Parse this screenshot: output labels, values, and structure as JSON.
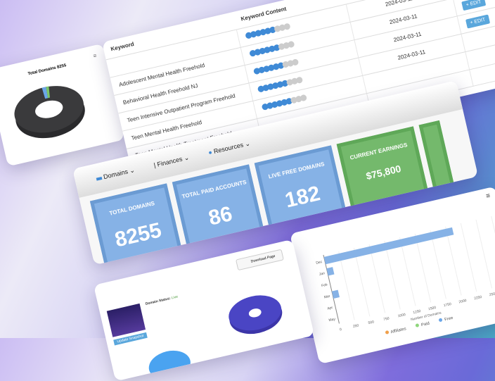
{
  "pie_card": {
    "title": "Total Domains 8255",
    "colors": {
      "main": "#3a3a3c",
      "slice1": "#6aa6e8",
      "slice2": "#7cc66a"
    }
  },
  "table": {
    "headers": [
      "Keyword",
      "Keyword Content",
      "",
      ""
    ],
    "rows": [
      {
        "keyword": "",
        "score": 6,
        "date": "2024-03-11",
        "action": "+ EDIT"
      },
      {
        "keyword": "Adolescent Mental Health Freehold",
        "score": 6,
        "date": "2024-03-11",
        "action": "+ EDIT"
      },
      {
        "keyword": "Behavioral Health Freehold NJ",
        "score": 6,
        "date": "2024-03-11",
        "action": "+ EDIT"
      },
      {
        "keyword": "Teen Intensive Outpatient Program Freehold",
        "score": 6,
        "date": "2024-03-11",
        "action": ""
      },
      {
        "keyword": "Teen Mental Health Freehold",
        "score": 6,
        "date": "",
        "action": ""
      },
      {
        "keyword": "Teen Mental Health Treatment Freehold",
        "score": null,
        "date": "",
        "action": ""
      }
    ]
  },
  "nav": {
    "domains": "Domains",
    "finances": "Finances",
    "resources": "Resources"
  },
  "stats": [
    {
      "label": "TOTAL DOMAINS",
      "value": "8255",
      "color": "#86b2e6"
    },
    {
      "label": "TOTAL PAID ACCOUNTS",
      "value": "86",
      "color": "#86b2e6"
    },
    {
      "label": "LIVE FREE DOMAINS",
      "value": "182",
      "color": "#86b2e6"
    },
    {
      "label": "CURRENT EARNINGS",
      "value": "$75,800",
      "color": "#74b96c"
    }
  ],
  "chart_data": {
    "type": "bar",
    "orientation": "horizontal",
    "categories": [
      "Dec",
      "Jan",
      "Feb",
      "Mar",
      "Apr",
      "May"
    ],
    "series": [
      {
        "name": "Free",
        "values": [
          2100,
          100,
          0,
          100,
          0,
          0
        ],
        "color": "#86b2e6"
      }
    ],
    "xticks": [
      0,
      250,
      500,
      750,
      1000,
      1250,
      1500,
      1750,
      2000,
      2250,
      2500,
      2750
    ],
    "xlim": [
      0,
      2750
    ],
    "xlabel": "Number of Domains",
    "legend": [
      "Affiliates",
      "Paid",
      "Free"
    ],
    "legend_colors": [
      "#f0a04b",
      "#8fd67c",
      "#6aa6e8"
    ],
    "legend_position": "bottom",
    "grid": true
  },
  "domain_card": {
    "status_label": "Domain Status:",
    "status": "Live",
    "button": "Download Page",
    "update_button": "Update Snapshot"
  }
}
